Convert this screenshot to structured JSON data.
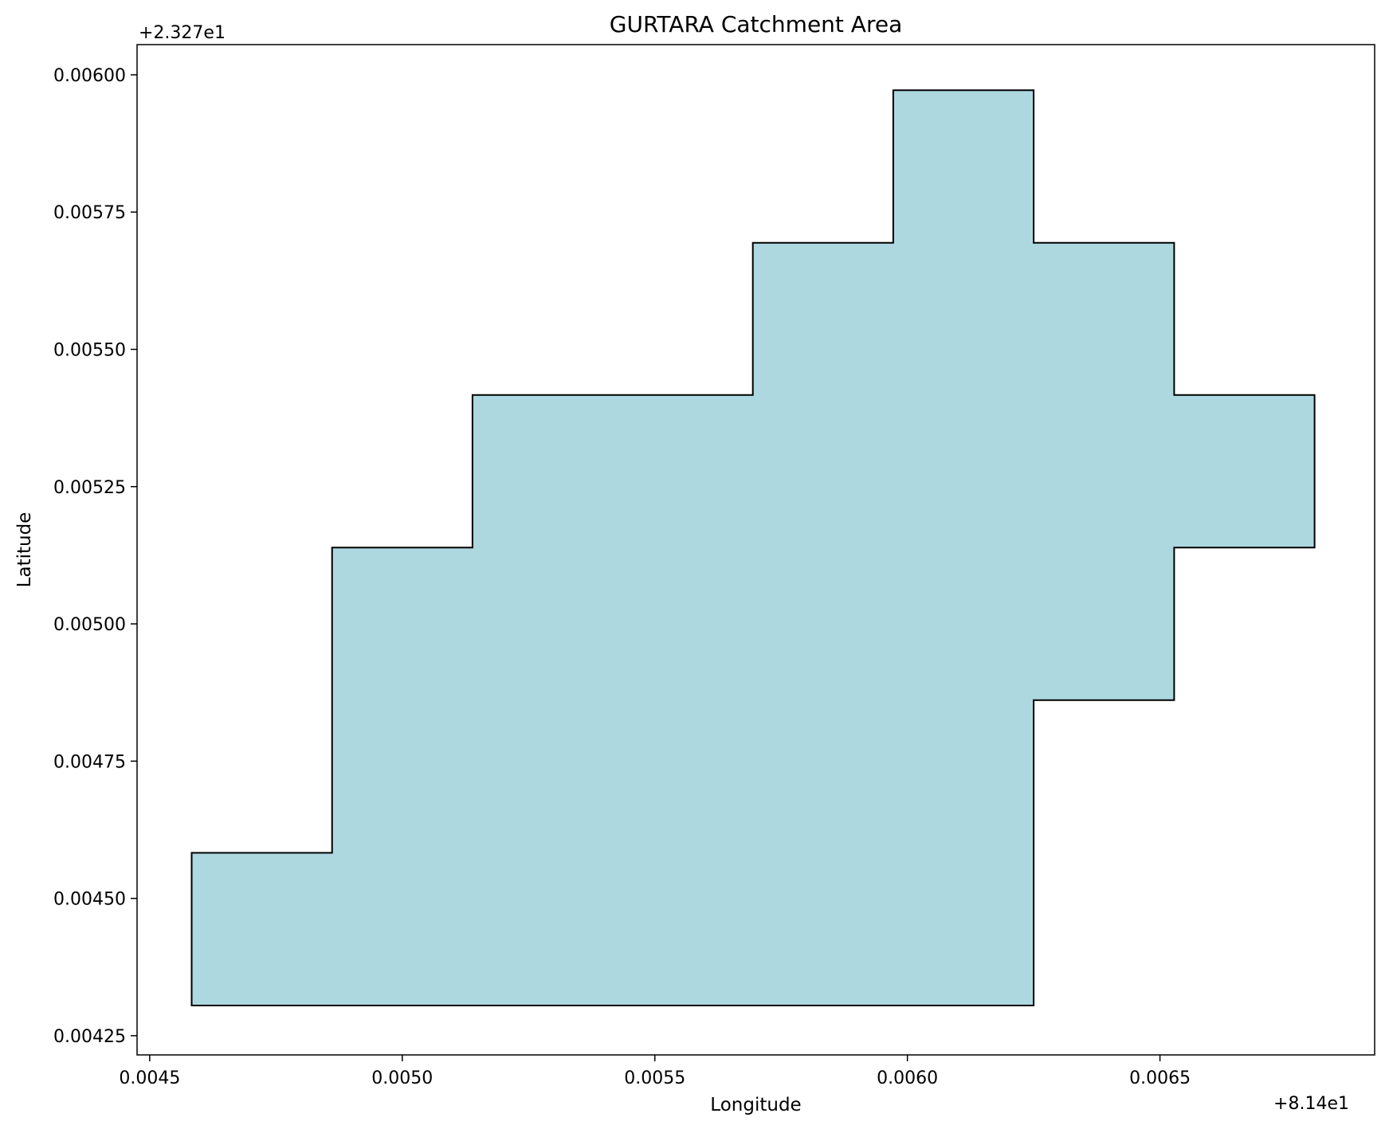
{
  "chart_data": {
    "type": "area",
    "title": "GURTARA Catchment Area",
    "xlabel": "Longitude",
    "ylabel": "Latitude",
    "x_offset_label": "+8.14e1",
    "y_offset_label": "+2.327e1",
    "xlim": [
      0.004475,
      0.006925
    ],
    "ylim": [
      0.004215,
      0.006055
    ],
    "x_ticks": [
      {
        "value": 0.0045,
        "label": "0.0045"
      },
      {
        "value": 0.005,
        "label": "0.0050"
      },
      {
        "value": 0.0055,
        "label": "0.0055"
      },
      {
        "value": 0.006,
        "label": "0.0060"
      },
      {
        "value": 0.0065,
        "label": "0.0065"
      }
    ],
    "y_ticks": [
      {
        "value": 0.00425,
        "label": "0.00425"
      },
      {
        "value": 0.0045,
        "label": "0.00450"
      },
      {
        "value": 0.00475,
        "label": "0.00475"
      },
      {
        "value": 0.005,
        "label": "0.00500"
      },
      {
        "value": 0.00525,
        "label": "0.00525"
      },
      {
        "value": 0.0055,
        "label": "0.00550"
      },
      {
        "value": 0.00575,
        "label": "0.00575"
      },
      {
        "value": 0.006,
        "label": "0.00600"
      }
    ],
    "grid": false,
    "fill_color": "#add8e0",
    "edge_color": "#000000",
    "polygon": [
      [
        0.004583,
        0.004305
      ],
      [
        0.00625,
        0.004305
      ],
      [
        0.00625,
        0.004861
      ],
      [
        0.006528,
        0.004861
      ],
      [
        0.006528,
        0.005139
      ],
      [
        0.006806,
        0.005139
      ],
      [
        0.006806,
        0.005417
      ],
      [
        0.006528,
        0.005417
      ],
      [
        0.006528,
        0.005694
      ],
      [
        0.00625,
        0.005694
      ],
      [
        0.00625,
        0.005972
      ],
      [
        0.005972,
        0.005972
      ],
      [
        0.005972,
        0.005694
      ],
      [
        0.005694,
        0.005694
      ],
      [
        0.005694,
        0.005417
      ],
      [
        0.005139,
        0.005417
      ],
      [
        0.005139,
        0.005139
      ],
      [
        0.004861,
        0.005139
      ],
      [
        0.004861,
        0.004583
      ],
      [
        0.004583,
        0.004583
      ]
    ]
  }
}
